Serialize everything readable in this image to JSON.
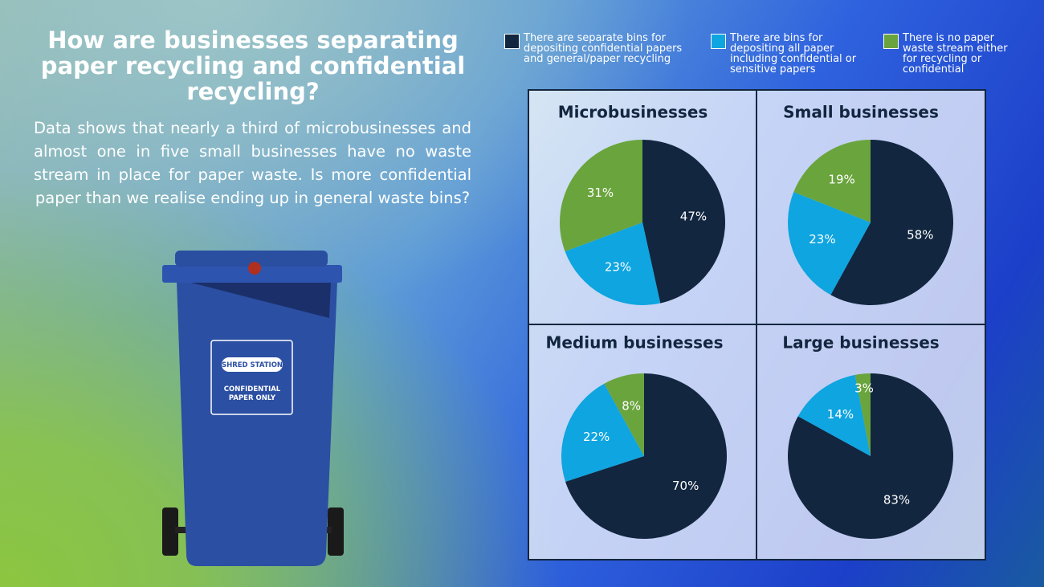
{
  "title": "How are businesses separating paper recycling and confidential recycling?",
  "description": "Data shows that nearly a third of microbusinesses and almost one in five small businesses have no waste stream in place for paper waste. Is more confidential paper than we realise ending up in general waste bins?",
  "bin": {
    "brand": "SHRED STATION",
    "label": "CONFIDENTIAL PAPER ONLY"
  },
  "legend": [
    {
      "label": "There are separate bins for depositing confidential papers and general/paper recycling",
      "color": "#12263f"
    },
    {
      "label": "There are bins for depositing all paper including confidential or sensitive papers",
      "color": "#0ea5e0"
    },
    {
      "label": "There is no paper waste stream either for recycling or confidential",
      "color": "#6aa43d"
    }
  ],
  "chart_data": [
    {
      "type": "pie",
      "title": "Microbusinesses",
      "values": [
        47,
        23,
        31
      ],
      "value_labels": [
        "47%",
        "23%",
        "31%"
      ]
    },
    {
      "type": "pie",
      "title": "Small businesses",
      "values": [
        58,
        23,
        19
      ],
      "value_labels": [
        "58%",
        "23%",
        "19%"
      ]
    },
    {
      "type": "pie",
      "title": "Medium businesses",
      "values": [
        70,
        22,
        8
      ],
      "value_labels": [
        "70%",
        "22%",
        "8%"
      ]
    },
    {
      "type": "pie",
      "title": "Large businesses",
      "values": [
        83,
        14,
        3
      ],
      "value_labels": [
        "83%",
        "14%",
        "3%"
      ]
    }
  ]
}
